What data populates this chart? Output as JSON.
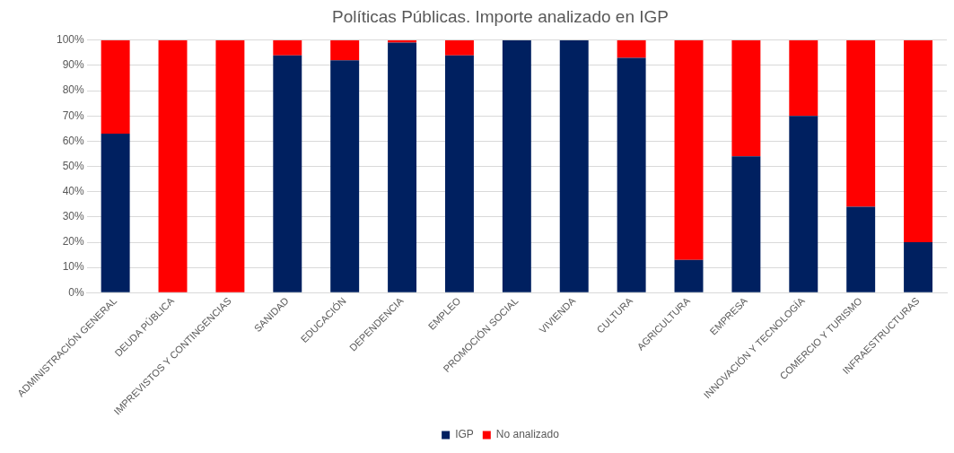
{
  "chart_data": {
    "type": "bar",
    "title": "Políticas Públicas. Importe analizado en IGP",
    "stacked": true,
    "categories": [
      "ADMINISTRACIÓN GENERAL",
      "DEUDA PÚBLICA",
      "IMPREVISTOS Y CONTINGENCIAS",
      "SANIDAD",
      "EDUCACIÓN",
      "DEPENDENCIA",
      "EMPLEO",
      "PROMOCIÓN SOCIAL",
      "VIVIENDA",
      "CULTURA",
      "AGRICULTURA",
      "EMPRESA",
      "INNOVACIÓN Y TECNOLOGÍA",
      "COMERCIO Y TURISMO",
      "INFRAESTRUCTURAS"
    ],
    "series": [
      {
        "name": "IGP",
        "color": "#002060",
        "values": [
          63,
          0,
          0,
          94,
          92,
          99,
          94,
          100,
          100,
          93,
          13,
          54,
          70,
          34,
          20
        ]
      },
      {
        "name": "No analizado",
        "color": "#ff0000",
        "values": [
          37,
          100,
          100,
          6,
          8,
          1,
          6,
          0,
          0,
          7,
          87,
          46,
          30,
          66,
          80
        ]
      }
    ],
    "ylim": [
      0,
      100
    ],
    "yticks": [
      {
        "value": 0,
        "label": "0%"
      },
      {
        "value": 10,
        "label": "10%"
      },
      {
        "value": 20,
        "label": "20%"
      },
      {
        "value": 30,
        "label": "30%"
      },
      {
        "value": 40,
        "label": "40%"
      },
      {
        "value": 50,
        "label": "50%"
      },
      {
        "value": 60,
        "label": "60%"
      },
      {
        "value": 70,
        "label": "70%"
      },
      {
        "value": 80,
        "label": "80%"
      },
      {
        "value": 90,
        "label": "90%"
      },
      {
        "value": 100,
        "label": "100%"
      }
    ],
    "grid": "y",
    "legend": "bottom"
  }
}
